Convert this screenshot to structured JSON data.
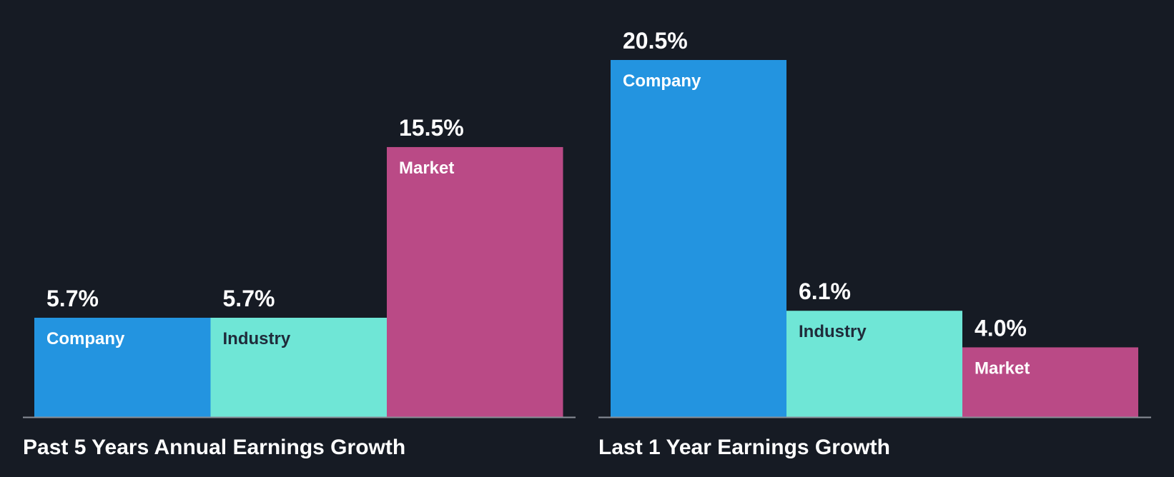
{
  "colors": {
    "background": "#161b24",
    "company": "#2394e0",
    "industry": "#6fe6d6",
    "market": "#ba4a86",
    "baseline": "#8a8f98",
    "text_light": "#ffffff",
    "text_dark": "#1f2b3a"
  },
  "chart_data": [
    {
      "type": "bar",
      "title": "Past 5 Years Annual Earnings Growth",
      "categories": [
        "Company",
        "Industry",
        "Market"
      ],
      "values": [
        5.7,
        5.7,
        15.5
      ],
      "value_labels": [
        "5.7%",
        "5.7%",
        "15.5%"
      ],
      "ylim": [
        0,
        20.5
      ],
      "xlabel": "",
      "ylabel": "",
      "grid": false
    },
    {
      "type": "bar",
      "title": "Last 1 Year Earnings Growth",
      "categories": [
        "Company",
        "Industry",
        "Market"
      ],
      "values": [
        20.5,
        6.1,
        4.0
      ],
      "value_labels": [
        "20.5%",
        "6.1%",
        "4.0%"
      ],
      "ylim": [
        0,
        20.5
      ],
      "xlabel": "",
      "ylabel": "",
      "grid": false
    }
  ]
}
